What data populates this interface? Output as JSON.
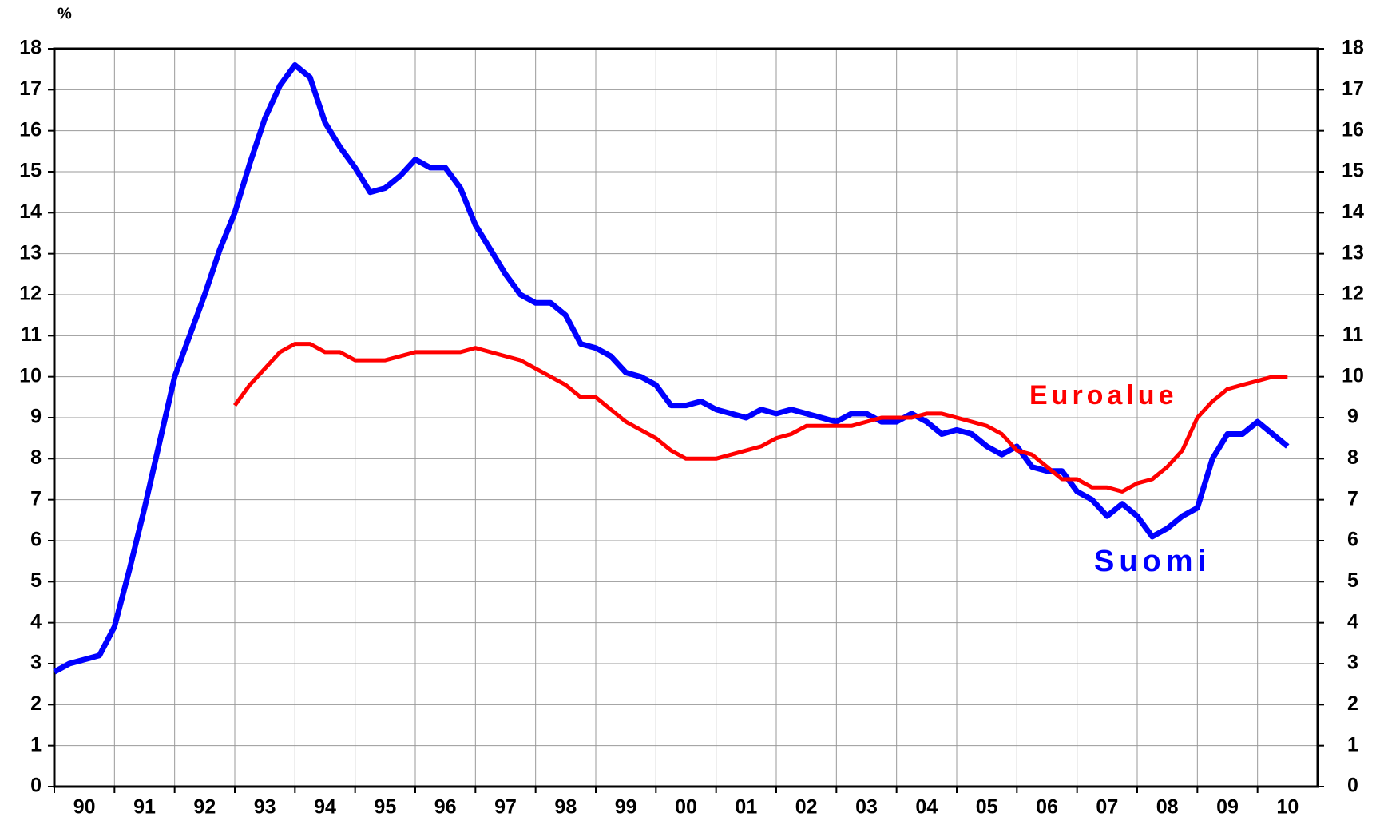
{
  "chart_data": {
    "type": "line",
    "y_unit_label": "%",
    "x": [
      1990,
      1990.25,
      1990.5,
      1990.75,
      1991,
      1991.25,
      1991.5,
      1991.75,
      1992,
      1992.25,
      1992.5,
      1992.75,
      1993,
      1993.25,
      1993.5,
      1993.75,
      1994,
      1994.25,
      1994.5,
      1994.75,
      1995,
      1995.25,
      1995.5,
      1995.75,
      1996,
      1996.25,
      1996.5,
      1996.75,
      1997,
      1997.25,
      1997.5,
      1997.75,
      1998,
      1998.25,
      1998.5,
      1998.75,
      1999,
      1999.25,
      1999.5,
      1999.75,
      2000,
      2000.25,
      2000.5,
      2000.75,
      2001,
      2001.25,
      2001.5,
      2001.75,
      2002,
      2002.25,
      2002.5,
      2002.75,
      2003,
      2003.25,
      2003.5,
      2003.75,
      2004,
      2004.25,
      2004.5,
      2004.75,
      2005,
      2005.25,
      2005.5,
      2005.75,
      2006,
      2006.25,
      2006.5,
      2006.75,
      2007,
      2007.25,
      2007.5,
      2007.75,
      2008,
      2008.25,
      2008.5,
      2008.75,
      2009,
      2009.25,
      2009.5,
      2009.75,
      2010,
      2010.25,
      2010.5
    ],
    "series": [
      {
        "name": "Suomi",
        "color": "#0000ff",
        "values": [
          2.8,
          3.0,
          3.1,
          3.2,
          3.9,
          5.3,
          6.8,
          8.4,
          10.0,
          11.0,
          12.0,
          13.1,
          14.0,
          15.2,
          16.3,
          17.1,
          17.6,
          17.3,
          16.2,
          15.6,
          15.1,
          14.5,
          14.6,
          14.9,
          15.3,
          15.1,
          15.1,
          14.6,
          13.7,
          13.1,
          12.5,
          12.0,
          11.8,
          11.8,
          11.5,
          10.8,
          10.7,
          10.5,
          10.1,
          10.0,
          9.8,
          9.3,
          9.3,
          9.4,
          9.2,
          9.1,
          9.0,
          9.2,
          9.1,
          9.2,
          9.1,
          9.0,
          8.9,
          9.1,
          9.1,
          8.9,
          8.9,
          9.1,
          8.9,
          8.6,
          8.7,
          8.6,
          8.3,
          8.1,
          8.3,
          7.8,
          7.7,
          7.7,
          7.2,
          7.0,
          6.6,
          6.9,
          6.6,
          6.1,
          6.3,
          6.6,
          6.8,
          8.0,
          8.6,
          8.6,
          8.9,
          8.6,
          8.3
        ]
      },
      {
        "name": "Euroalue",
        "color": "#ff0000",
        "values": [
          null,
          null,
          null,
          null,
          null,
          null,
          null,
          null,
          null,
          null,
          null,
          null,
          9.3,
          9.8,
          10.2,
          10.6,
          10.8,
          10.8,
          10.6,
          10.6,
          10.4,
          10.4,
          10.4,
          10.5,
          10.6,
          10.6,
          10.6,
          10.6,
          10.7,
          10.6,
          10.5,
          10.4,
          10.2,
          10.0,
          9.8,
          9.5,
          9.5,
          9.2,
          8.9,
          8.7,
          8.5,
          8.2,
          8.0,
          8.0,
          8.0,
          8.1,
          8.2,
          8.3,
          8.5,
          8.6,
          8.8,
          8.8,
          8.8,
          8.8,
          8.9,
          9.0,
          9.0,
          9.0,
          9.1,
          9.1,
          9.0,
          8.9,
          8.8,
          8.6,
          8.2,
          8.1,
          7.8,
          7.5,
          7.5,
          7.3,
          7.3,
          7.2,
          7.4,
          7.5,
          7.8,
          8.2,
          9.0,
          9.4,
          9.7,
          9.8,
          9.9,
          10.0,
          10.0
        ]
      }
    ],
    "xlim": [
      1990,
      2011
    ],
    "xticks": [
      {
        "value": 1990.5,
        "label": "90"
      },
      {
        "value": 1991.5,
        "label": "91"
      },
      {
        "value": 1992.5,
        "label": "92"
      },
      {
        "value": 1993.5,
        "label": "93"
      },
      {
        "value": 1994.5,
        "label": "94"
      },
      {
        "value": 1995.5,
        "label": "95"
      },
      {
        "value": 1996.5,
        "label": "96"
      },
      {
        "value": 1997.5,
        "label": "97"
      },
      {
        "value": 1998.5,
        "label": "98"
      },
      {
        "value": 1999.5,
        "label": "99"
      },
      {
        "value": 2000.5,
        "label": "00"
      },
      {
        "value": 2001.5,
        "label": "01"
      },
      {
        "value": 2002.5,
        "label": "02"
      },
      {
        "value": 2003.5,
        "label": "03"
      },
      {
        "value": 2004.5,
        "label": "04"
      },
      {
        "value": 2005.5,
        "label": "05"
      },
      {
        "value": 2006.5,
        "label": "06"
      },
      {
        "value": 2007.5,
        "label": "07"
      },
      {
        "value": 2008.5,
        "label": "08"
      },
      {
        "value": 2009.5,
        "label": "09"
      },
      {
        "value": 2010.5,
        "label": "10"
      }
    ],
    "ylim": [
      0,
      18
    ],
    "yticks": [
      0,
      1,
      2,
      3,
      4,
      5,
      6,
      7,
      8,
      9,
      10,
      11,
      12,
      13,
      14,
      15,
      16,
      17,
      18
    ],
    "grid": true
  }
}
